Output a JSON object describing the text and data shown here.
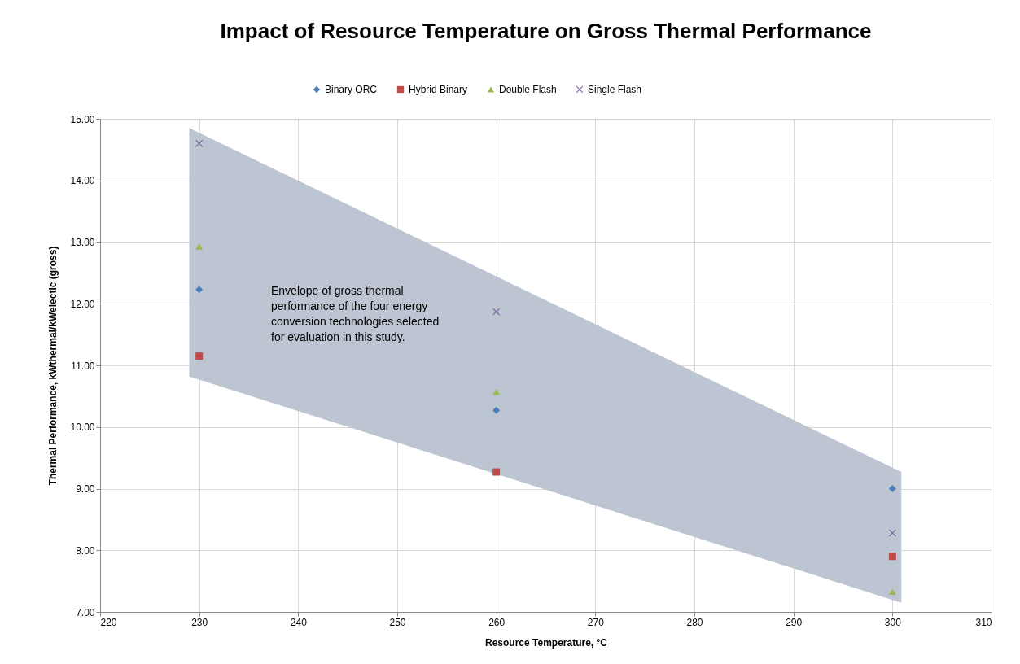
{
  "chart_data": {
    "type": "scatter",
    "title": "Impact of Resource Temperature on Gross Thermal Performance",
    "xlabel": "Resource Temperature, °C",
    "ylabel": "Thermal Performance, kWthermal/kWelectic (gross)",
    "x": [
      230,
      260,
      300
    ],
    "series": [
      {
        "name": "Binary ORC",
        "color": "#4a7ebb",
        "marker": "diamond",
        "values": [
          12.23,
          10.27,
          9.0
        ]
      },
      {
        "name": "Hybrid Binary",
        "color": "#be4b48",
        "marker": "square",
        "values": [
          11.15,
          9.27,
          7.9
        ]
      },
      {
        "name": "Double Flash",
        "color": "#98b954",
        "marker": "triangle",
        "values": [
          12.93,
          10.57,
          7.33
        ]
      },
      {
        "name": "Single Flash",
        "color": "#7d60a0",
        "marker": "cross",
        "values": [
          14.6,
          11.87,
          8.28
        ]
      },
      {
        "type": "area",
        "color": "#bcc5d1",
        "x": [
          229,
          300.9
        ],
        "values": [
          null,
          null
        ],
        "upper": [
          14.85,
          9.27
        ],
        "lower": [
          10.82,
          7.15
        ]
      }
    ],
    "annotations": [
      "Envelope of  gross thermal\nperformance of the four energy\nconversion technologies selected\nfor evaluation in this study."
    ],
    "xlim": [
      220,
      310
    ],
    "xticks": [
      220,
      230,
      240,
      250,
      260,
      270,
      280,
      290,
      300,
      310
    ],
    "ylim": [
      7,
      15
    ],
    "yticks": [
      {
        "value": 7,
        "label": "7.00"
      },
      {
        "value": 8,
        "label": "8.00"
      },
      {
        "value": 9,
        "label": "9.00"
      },
      {
        "value": 10,
        "label": "10.00"
      },
      {
        "value": 11,
        "label": "11.00"
      },
      {
        "value": 12,
        "label": "12.00"
      },
      {
        "value": 13,
        "label": "13.00"
      },
      {
        "value": 14,
        "label": "14.00"
      },
      {
        "value": 15,
        "label": "15.00"
      }
    ],
    "grid": true,
    "legend": "top"
  }
}
